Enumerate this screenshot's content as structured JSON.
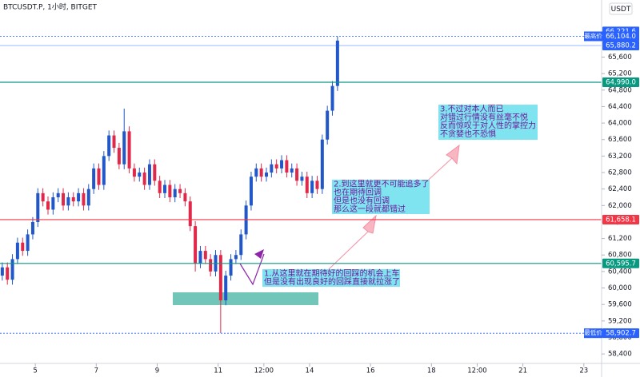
{
  "chart_data": {
    "type": "candlestick",
    "title": "BTCUSDT.P, 1小时, BITGET",
    "currency": "USDT",
    "up_color": "#2157c9",
    "down_color": "#e0294a",
    "x": [
      -26,
      -22,
      -18,
      -14,
      -10,
      -6,
      -2,
      2,
      6,
      10,
      14,
      18,
      22,
      26,
      30,
      34,
      38,
      42,
      46,
      50,
      54,
      58,
      62,
      66,
      70,
      74,
      78,
      82,
      86,
      90,
      94,
      98,
      102,
      106,
      110,
      114,
      118,
      122,
      126,
      130,
      134,
      138,
      142,
      146,
      150,
      154,
      158,
      162,
      166,
      170,
      174,
      178,
      182,
      186,
      190,
      194,
      198,
      202,
      206,
      210,
      214,
      218,
      222,
      226,
      230,
      234,
      238
    ],
    "open": [
      60300,
      60500,
      60200,
      60700,
      61100,
      60900,
      61300,
      61600,
      62300,
      62100,
      61900,
      62200,
      62300,
      62000,
      62200,
      62100,
      62300,
      62000,
      62400,
      62900,
      62500,
      63200,
      63700,
      63400,
      63000,
      63800,
      62900,
      62700,
      62800,
      62500,
      63000,
      62600,
      62300,
      62500,
      62200,
      62400,
      62300,
      62100,
      61500,
      60600,
      60900,
      60700,
      60400,
      60800,
      59700,
      60300,
      60700,
      60800,
      61300,
      62000,
      62700,
      62900,
      62700,
      62800,
      63000,
      62900,
      63100,
      62800,
      62900,
      62600,
      62700,
      62300,
      62600,
      62400,
      63600,
      64300,
      64900
    ],
    "high": [
      60620,
      60620,
      60820,
      61220,
      61220,
      61420,
      61720,
      62420,
      62420,
      62220,
      62320,
      62420,
      62420,
      62320,
      62320,
      62420,
      62420,
      62520,
      63020,
      63020,
      63320,
      63820,
      63820,
      63520,
      64350,
      63920,
      63020,
      62920,
      62920,
      63120,
      63120,
      62720,
      62620,
      62620,
      62520,
      62520,
      62420,
      62220,
      61620,
      61020,
      61020,
      60820,
      60920,
      60920,
      60420,
      60820,
      60920,
      61420,
      62120,
      62820,
      63020,
      63020,
      62920,
      63120,
      63120,
      63220,
      63220,
      63020,
      63020,
      62820,
      62820,
      62720,
      62720,
      63720,
      64420,
      65020,
      66104
    ],
    "low": [
      60180,
      60080,
      60080,
      60580,
      60780,
      60780,
      61180,
      61480,
      61980,
      61780,
      61780,
      62080,
      61880,
      61880,
      61980,
      61980,
      61880,
      61880,
      62280,
      62380,
      62380,
      63080,
      63280,
      62880,
      62880,
      62780,
      62580,
      62580,
      62380,
      62380,
      62480,
      62180,
      62180,
      62080,
      62080,
      62180,
      61980,
      61380,
      60400,
      60480,
      60580,
      60280,
      60280,
      58902.7,
      59580,
      60180,
      60580,
      60680,
      61180,
      61880,
      62580,
      62580,
      62580,
      62680,
      62780,
      62780,
      62680,
      62680,
      62480,
      62480,
      62180,
      62180,
      62280,
      62280,
      63480,
      64180,
      64780
    ],
    "close": [
      60500,
      60200,
      60700,
      61100,
      60900,
      61300,
      61600,
      62300,
      62100,
      61900,
      62200,
      62300,
      62000,
      62200,
      62100,
      62300,
      62000,
      62400,
      62900,
      62500,
      63200,
      63700,
      63400,
      63000,
      63800,
      62900,
      62700,
      62800,
      62500,
      63000,
      62600,
      62300,
      62500,
      62200,
      62400,
      62300,
      62100,
      61500,
      60600,
      60900,
      60700,
      60400,
      60800,
      59700,
      60300,
      60700,
      60800,
      61300,
      62000,
      62700,
      62900,
      62700,
      62800,
      63000,
      62900,
      63100,
      62800,
      62900,
      62600,
      62700,
      62300,
      62600,
      62400,
      63600,
      64300,
      64900,
      66000
    ],
    "xlim": [
      -27.8,
      446
    ],
    "ylim": [
      58170,
      66985
    ],
    "xticks": [
      {
        "value": 0,
        "label": "5"
      },
      {
        "value": 48,
        "label": "7"
      },
      {
        "value": 96,
        "label": "9"
      },
      {
        "value": 144,
        "label": "11"
      },
      {
        "value": 180,
        "label": "12:00"
      },
      {
        "value": 216,
        "label": "14"
      },
      {
        "value": 264,
        "label": "16"
      },
      {
        "value": 312,
        "label": "18"
      },
      {
        "value": 348,
        "label": "12:00"
      },
      {
        "value": 384,
        "label": "21"
      },
      {
        "value": 432,
        "label": "23"
      }
    ],
    "yticks": [
      {
        "value": 58400,
        "label": "58,400"
      },
      {
        "value": 58800,
        "label": "58,800"
      },
      {
        "value": 59200,
        "label": "59,200"
      },
      {
        "value": 59600,
        "label": "59,600"
      },
      {
        "value": 60000,
        "label": "60,000"
      },
      {
        "value": 60400,
        "label": "60,400"
      },
      {
        "value": 60800,
        "label": "60,800"
      },
      {
        "value": 61200,
        "label": "61,200"
      },
      {
        "value": 61600,
        "label": "61,600"
      },
      {
        "value": 62000,
        "label": "62,000"
      },
      {
        "value": 62400,
        "label": "62,400"
      },
      {
        "value": 62800,
        "label": "62,800"
      },
      {
        "value": 63200,
        "label": "63,200"
      },
      {
        "value": 63600,
        "label": "63,600"
      },
      {
        "value": 64000,
        "label": "64,000"
      },
      {
        "value": 64400,
        "label": "64,400"
      },
      {
        "value": 64800,
        "label": "64,800"
      },
      {
        "value": 65200,
        "label": "65,200"
      },
      {
        "value": 65600,
        "label": "65,600"
      }
    ],
    "levels": [
      {
        "value": 66221.6,
        "label": "66,221.6",
        "color": "#2962ff",
        "style": "none"
      },
      {
        "value": 66104,
        "label": "66,104.0",
        "tag": "最高价",
        "color": "#2962ff",
        "style": "dotted"
      },
      {
        "value": 65880.2,
        "label": "65,880.2",
        "color": "#2962ff",
        "style": "thin"
      },
      {
        "value": 64990,
        "label": "64,990.0",
        "color": "#089981",
        "style": "solid"
      },
      {
        "value": 61658.1,
        "label": "61,658.1",
        "color": "#f23645",
        "style": "solid"
      },
      {
        "value": 60595.7,
        "label": "60,595.7",
        "color": "#089981",
        "style": "solid"
      },
      {
        "value": 58902.7,
        "label": "58,902.7",
        "tag": "最低价",
        "color": "#2962ff",
        "style": "dotted"
      }
    ],
    "annotations": [
      {
        "lines": [
          "1.从这里就在期待好的回踩的机会上车",
          "但是没有出现良好的回踩直接就拉涨了"
        ]
      },
      {
        "lines": [
          "2.到这里就更不可能追多了",
          "也在期待回调",
          "但是也没有回调",
          "那么这一段就都错过"
        ]
      },
      {
        "lines": [
          "3.不过对本人而已",
          "对错过行情没有丝毫不悦",
          "反而惊叹于对人性的掌控力",
          "不贪婪也不恐惧"
        ]
      }
    ]
  }
}
